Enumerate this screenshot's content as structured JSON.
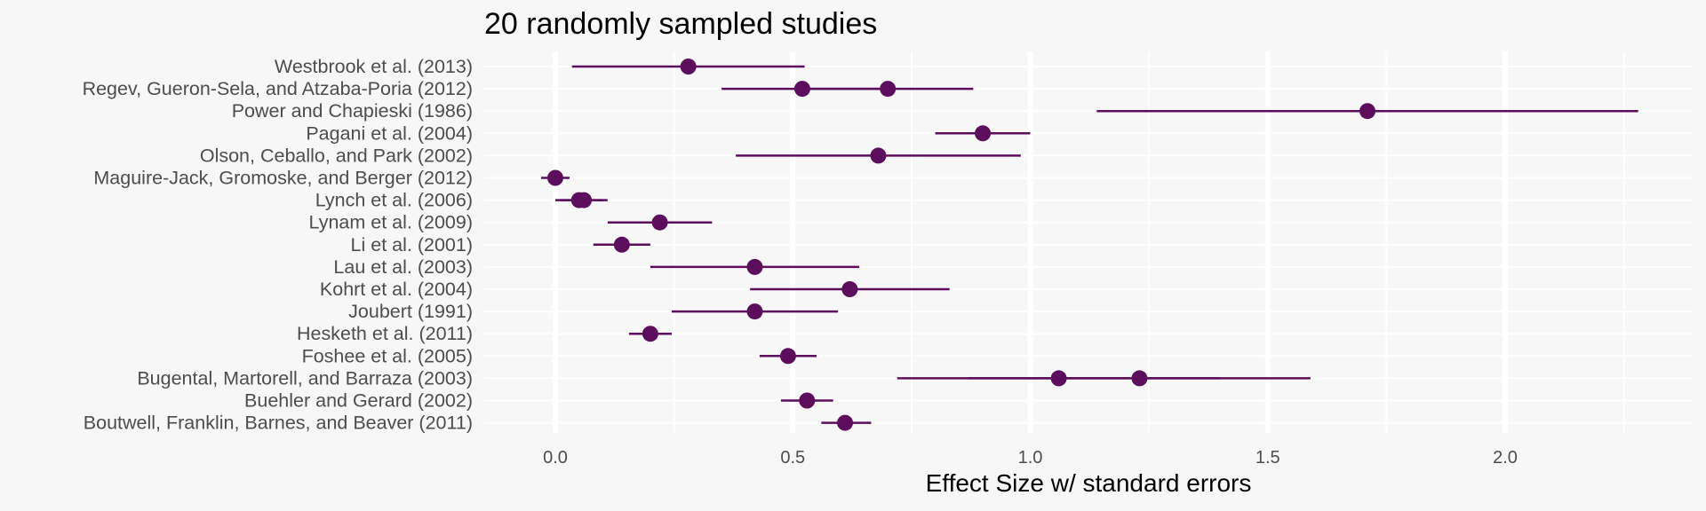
{
  "chart_data": {
    "type": "scatter",
    "subtype": "forest-plot",
    "title": "20 randomly sampled studies",
    "xlabel": "Effect Size w/ standard errors",
    "ylabel": "",
    "xlim": [
      -0.15,
      2.4
    ],
    "x_ticks": [
      0.0,
      0.5,
      1.0,
      1.5,
      2.0
    ],
    "x_tick_labels": [
      "0.0",
      "0.5",
      "1.0",
      "1.5",
      "2.0"
    ],
    "grid": true,
    "legend": "none",
    "point_color": "#5c0e5c",
    "categories": [
      "Westbrook et al. (2013)",
      "Regev, Gueron-Sela, and Atzaba-Poria (2012)",
      "Power and Chapieski (1986)",
      "Pagani et al. (2004)",
      "Olson, Ceballo, and Park (2002)",
      "Maguire-Jack, Gromoske, and Berger (2012)",
      "Lynch et al. (2006)",
      "Lynam et al. (2009)",
      "Li et al. (2001)",
      "Lau et al. (2003)",
      "Kohrt et al. (2004)",
      "Joubert (1991)",
      "Hesketh et al. (2011)",
      "Foshee et al. (2005)",
      "Bugental, Martorell, and Barraza (2003)",
      "Buehler and Gerard (2002)",
      "Boutwell, Franklin, Barnes, and Beaver (2011)"
    ],
    "points": [
      {
        "study": "Westbrook et al. (2013)",
        "estimate": 0.28,
        "lower": 0.035,
        "upper": 0.525
      },
      {
        "study": "Regev, Gueron-Sela, and Atzaba-Poria (2012)",
        "estimate": 0.52,
        "lower": 0.35,
        "upper": 0.69
      },
      {
        "study": "Regev, Gueron-Sela, and Atzaba-Poria (2012)",
        "estimate": 0.7,
        "lower": 0.52,
        "upper": 0.88
      },
      {
        "study": "Power and Chapieski (1986)",
        "estimate": 1.71,
        "lower": 1.14,
        "upper": 2.28
      },
      {
        "study": "Pagani et al. (2004)",
        "estimate": 0.9,
        "lower": 0.8,
        "upper": 1.0
      },
      {
        "study": "Olson, Ceballo, and Park (2002)",
        "estimate": 0.68,
        "lower": 0.38,
        "upper": 0.98
      },
      {
        "study": "Maguire-Jack, Gromoske, and Berger (2012)",
        "estimate": 0.0,
        "lower": -0.03,
        "upper": 0.03
      },
      {
        "study": "Lynch et al. (2006)",
        "estimate": 0.05,
        "lower": 0.0,
        "upper": 0.1
      },
      {
        "study": "Lynch et al. (2006)",
        "estimate": 0.06,
        "lower": 0.01,
        "upper": 0.11
      },
      {
        "study": "Lynam et al. (2009)",
        "estimate": 0.22,
        "lower": 0.11,
        "upper": 0.33
      },
      {
        "study": "Li et al. (2001)",
        "estimate": 0.14,
        "lower": 0.08,
        "upper": 0.2
      },
      {
        "study": "Lau et al. (2003)",
        "estimate": 0.42,
        "lower": 0.2,
        "upper": 0.64
      },
      {
        "study": "Kohrt et al. (2004)",
        "estimate": 0.62,
        "lower": 0.41,
        "upper": 0.83
      },
      {
        "study": "Joubert (1991)",
        "estimate": 0.42,
        "lower": 0.245,
        "upper": 0.595
      },
      {
        "study": "Hesketh et al. (2011)",
        "estimate": 0.2,
        "lower": 0.155,
        "upper": 0.245
      },
      {
        "study": "Foshee et al. (2005)",
        "estimate": 0.49,
        "lower": 0.43,
        "upper": 0.55
      },
      {
        "study": "Bugental, Martorell, and Barraza (2003)",
        "estimate": 1.06,
        "lower": 0.72,
        "upper": 1.4
      },
      {
        "study": "Bugental, Martorell, and Barraza (2003)",
        "estimate": 1.23,
        "lower": 0.87,
        "upper": 1.59
      },
      {
        "study": "Buehler and Gerard (2002)",
        "estimate": 0.53,
        "lower": 0.475,
        "upper": 0.585
      },
      {
        "study": "Boutwell, Franklin, Barnes, and Beaver (2011)",
        "estimate": 0.61,
        "lower": 0.56,
        "upper": 0.665
      }
    ]
  }
}
